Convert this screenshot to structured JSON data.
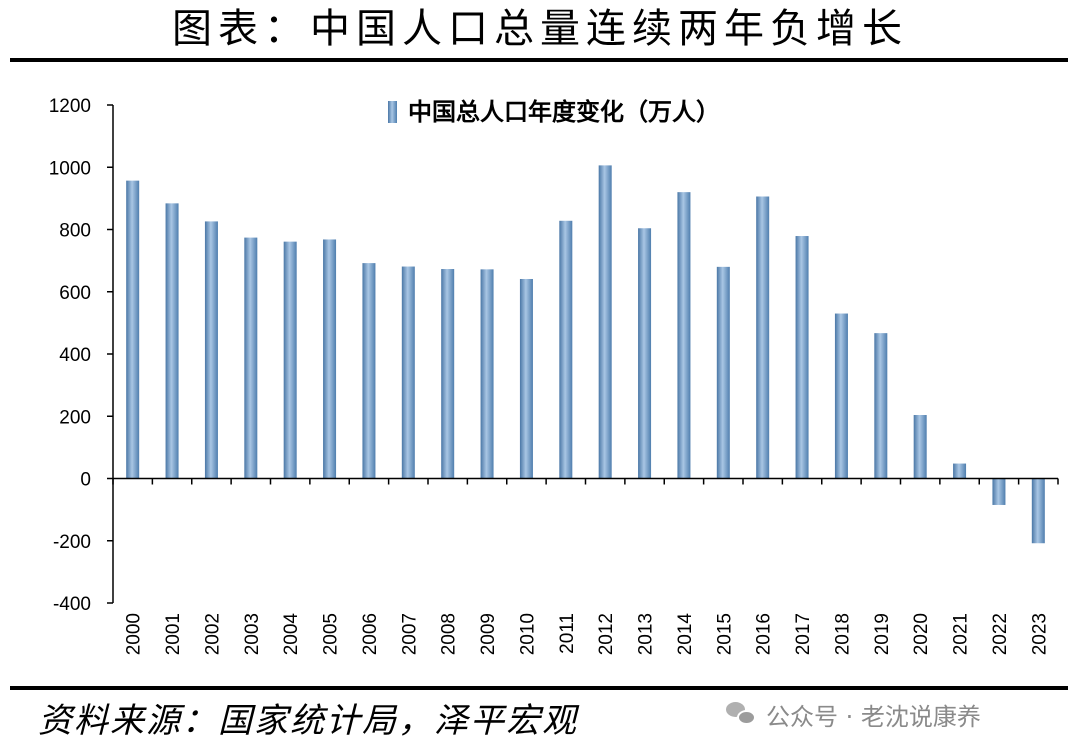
{
  "header": {
    "title": "图表：中国人口总量连续两年负增长"
  },
  "footer": {
    "source": "资料来源：国家统计局，泽平宏观",
    "watermark": "公众号 · 老沈说康养"
  },
  "chart_data": {
    "type": "bar",
    "title": "",
    "xlabel": "",
    "ylabel": "",
    "ylim": [
      -400,
      1200
    ],
    "yticks": [
      -400,
      -200,
      0,
      200,
      400,
      600,
      800,
      1000,
      1200
    ],
    "grid": false,
    "legend_position": "top-center",
    "bar_color": "#6f9cc8",
    "categories": [
      "2000",
      "2001",
      "2002",
      "2003",
      "2004",
      "2005",
      "2006",
      "2007",
      "2008",
      "2009",
      "2010",
      "2011",
      "2012",
      "2013",
      "2014",
      "2015",
      "2016",
      "2017",
      "2018",
      "2019",
      "2020",
      "2021",
      "2022",
      "2023"
    ],
    "series": [
      {
        "name": "中国总人口年度变化（万人）",
        "values": [
          957,
          884,
          826,
          774,
          761,
          768,
          692,
          681,
          673,
          672,
          641,
          828,
          1006,
          804,
          920,
          680,
          906,
          779,
          530,
          467,
          204,
          48,
          -85,
          -208
        ]
      }
    ]
  }
}
